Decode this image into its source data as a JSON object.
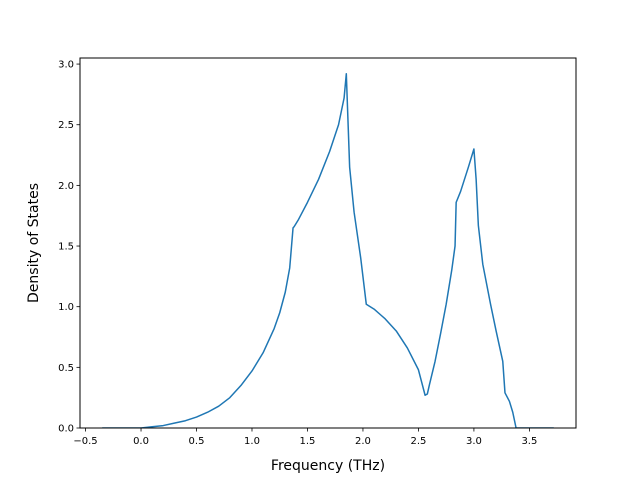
{
  "chart_data": {
    "type": "line",
    "title": "",
    "xlabel": "Frequency (THz)",
    "ylabel": "Density of States",
    "xlim": [
      -0.55,
      3.92
    ],
    "ylim": [
      0.0,
      3.05
    ],
    "xticks": [
      -0.5,
      0.0,
      0.5,
      1.0,
      1.5,
      2.0,
      2.5,
      3.0,
      3.5
    ],
    "xtick_labels": [
      "−0.5",
      "0.0",
      "0.5",
      "1.0",
      "1.5",
      "2.0",
      "2.5",
      "3.0",
      "3.5"
    ],
    "yticks": [
      0.0,
      0.5,
      1.0,
      1.5,
      2.0,
      2.5,
      3.0
    ],
    "ytick_labels": [
      "0.0",
      "0.5",
      "1.0",
      "1.5",
      "2.0",
      "2.5",
      "3.0"
    ],
    "grid": false,
    "legend": false,
    "series": [
      {
        "color": "#1f77b4",
        "x": [
          -0.35,
          0.0,
          0.1,
          0.2,
          0.3,
          0.4,
          0.5,
          0.6,
          0.7,
          0.8,
          0.9,
          1.0,
          1.1,
          1.2,
          1.25,
          1.3,
          1.34,
          1.37,
          1.38,
          1.42,
          1.5,
          1.6,
          1.7,
          1.78,
          1.83,
          1.85,
          1.88,
          1.92,
          1.98,
          2.03,
          2.1,
          2.2,
          2.3,
          2.4,
          2.5,
          2.56,
          2.58,
          2.6,
          2.65,
          2.7,
          2.75,
          2.8,
          2.83,
          2.84,
          2.88,
          2.95,
          3.0,
          3.02,
          3.04,
          3.08,
          3.15,
          3.2,
          3.26,
          3.28,
          3.32,
          3.35,
          3.38,
          3.5,
          3.72
        ],
        "y": [
          0.0,
          0.0,
          0.01,
          0.02,
          0.04,
          0.06,
          0.09,
          0.13,
          0.18,
          0.25,
          0.35,
          0.47,
          0.62,
          0.82,
          0.95,
          1.12,
          1.32,
          1.65,
          1.66,
          1.72,
          1.86,
          2.05,
          2.28,
          2.5,
          2.72,
          2.92,
          2.15,
          1.78,
          1.4,
          1.02,
          0.98,
          0.9,
          0.8,
          0.66,
          0.48,
          0.27,
          0.28,
          0.36,
          0.55,
          0.78,
          1.02,
          1.3,
          1.5,
          1.86,
          1.95,
          2.15,
          2.3,
          2.05,
          1.67,
          1.35,
          1.02,
          0.8,
          0.55,
          0.29,
          0.22,
          0.13,
          0.0,
          0.0,
          0.0
        ]
      }
    ]
  }
}
